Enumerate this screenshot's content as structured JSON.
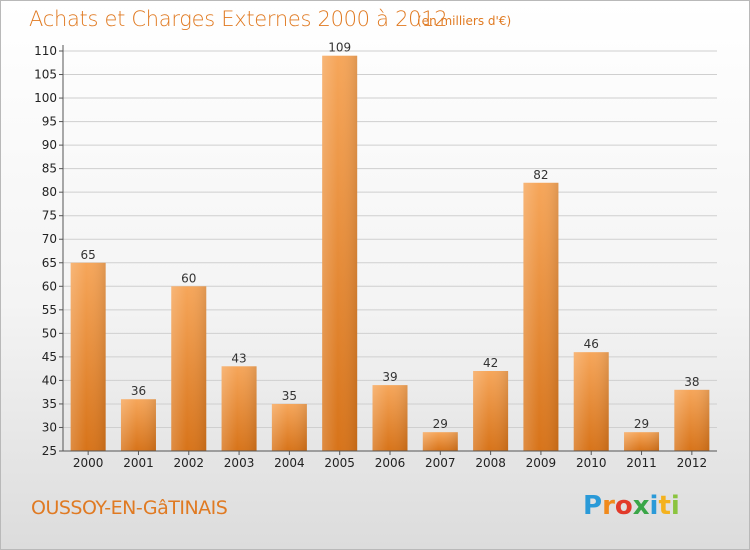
{
  "header": {
    "title": "Achats et Charges Externes 2000 à 2012",
    "subtitle": "(en milliers d'€)"
  },
  "footer": {
    "commune": "OUSSOY-EN-GâTINAIS",
    "logo_text": "Proxiti"
  },
  "colors": {
    "accent": "#e07a22",
    "bar_top": "#f6a65a",
    "bar_bottom": "#d77319",
    "grid": "#cfcfcf"
  },
  "chart_data": {
    "type": "bar",
    "title": "Achats et Charges Externes 2000 à 2012",
    "subtitle": "(en milliers d'€)",
    "categories": [
      "2000",
      "2001",
      "2002",
      "2003",
      "2004",
      "2005",
      "2006",
      "2007",
      "2008",
      "2009",
      "2010",
      "2011",
      "2012"
    ],
    "values": [
      65,
      36,
      60,
      43,
      35,
      109,
      39,
      29,
      42,
      82,
      46,
      29,
      38
    ],
    "ylim": [
      25,
      110
    ],
    "yticks": [
      25,
      30,
      35,
      40,
      45,
      50,
      55,
      60,
      65,
      70,
      75,
      80,
      85,
      90,
      95,
      100,
      105,
      110
    ],
    "grid": true,
    "xlabel": "",
    "ylabel": ""
  }
}
